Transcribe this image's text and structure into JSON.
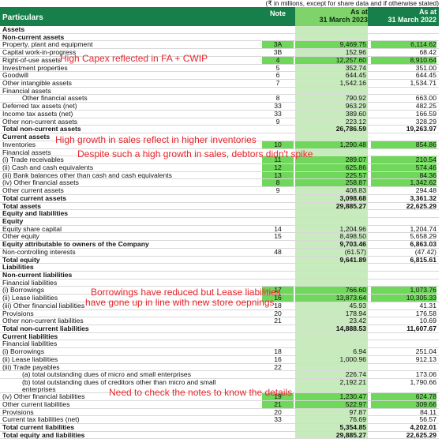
{
  "units_note": "(₹ in millions, except for share data and if otherwise stated)",
  "header": {
    "particulars": "Particulars",
    "note": "Note",
    "col1": [
      "As at",
      "31 March 2023"
    ],
    "col2": [
      "As at",
      "31 March 2022"
    ]
  },
  "rows": [
    {
      "p": "Assets",
      "n": "",
      "v1": "",
      "v2": "",
      "cls": "b"
    },
    {
      "p": "Non-current assets",
      "n": "",
      "v1": "",
      "v2": "",
      "cls": "b"
    },
    {
      "p": "Property, plant and equipment",
      "n": "3A",
      "v1": "9,469.75",
      "v2": "6,114.62",
      "cls": "hl"
    },
    {
      "p": "Capital work-in-progress",
      "n": "3B",
      "v1": "152.96",
      "v2": "68.42",
      "cls": ""
    },
    {
      "p": "Right-of-use assets",
      "n": "4",
      "v1": "12,257.60",
      "v2": "8,910.64",
      "cls": "hl"
    },
    {
      "p": "Investment properties",
      "n": "5",
      "v1": "352.74",
      "v2": "351.00",
      "cls": ""
    },
    {
      "p": "Goodwill",
      "n": "6",
      "v1": "644.45",
      "v2": "644.45",
      "cls": ""
    },
    {
      "p": "Other intangible assets",
      "n": "7",
      "v1": "1,542.16",
      "v2": "1,534.71",
      "cls": ""
    },
    {
      "p": "Financial assets",
      "n": "",
      "v1": "",
      "v2": "",
      "cls": ""
    },
    {
      "p": "Other financial assets",
      "n": "8",
      "v1": "790.92",
      "v2": "663.00",
      "cls": "ind2"
    },
    {
      "p": "Deferred tax assets (net)",
      "n": "33",
      "v1": "963.29",
      "v2": "482.25",
      "cls": ""
    },
    {
      "p": "Income tax assets (net)",
      "n": "33",
      "v1": "389.60",
      "v2": "166.59",
      "cls": ""
    },
    {
      "p": "Other non-current assets",
      "n": "9",
      "v1": "223.12",
      "v2": "328.29",
      "cls": ""
    },
    {
      "p": "Total non-current assets",
      "n": "",
      "v1": "26,786.59",
      "v2": "19,263.97",
      "cls": "b"
    },
    {
      "p": "Current assets",
      "n": "",
      "v1": "",
      "v2": "",
      "cls": "b"
    },
    {
      "p": "Inventories",
      "n": "10",
      "v1": "1,290.48",
      "v2": "854.86",
      "cls": "hl"
    },
    {
      "p": "Financial assets",
      "n": "",
      "v1": "",
      "v2": "",
      "cls": ""
    },
    {
      "p": "(i)   Trade receivables",
      "n": "11",
      "v1": "289.07",
      "v2": "210.54",
      "cls": "hl"
    },
    {
      "p": "(ii)  Cash and cash equivalents",
      "n": "12",
      "v1": "625.86",
      "v2": "574.46",
      "cls": "hl"
    },
    {
      "p": "(iii) Bank balances other than cash and cash equivalents",
      "n": "13",
      "v1": "225.57",
      "v2": "84.36",
      "cls": "hl"
    },
    {
      "p": "(iv)  Other financial assets",
      "n": "8",
      "v1": "258.87",
      "v2": "1,342.62",
      "cls": "hl"
    },
    {
      "p": "Other current assets",
      "n": "9",
      "v1": "408.83",
      "v2": "294.48",
      "cls": ""
    },
    {
      "p": "Total current assets",
      "n": "",
      "v1": "3,098.68",
      "v2": "3,361.32",
      "cls": "b"
    },
    {
      "p": "Total assets",
      "n": "",
      "v1": "29,885.27",
      "v2": "22,625.29",
      "cls": "b"
    },
    {
      "p": "Equity and liabilities",
      "n": "",
      "v1": "",
      "v2": "",
      "cls": "b"
    },
    {
      "p": "Equity",
      "n": "",
      "v1": "",
      "v2": "",
      "cls": "b"
    },
    {
      "p": "Equity share capital",
      "n": "14",
      "v1": "1,204.96",
      "v2": "1,204.74",
      "cls": ""
    },
    {
      "p": "Other equity",
      "n": "15",
      "v1": "8,498.50",
      "v2": "5,658.29",
      "cls": ""
    },
    {
      "p": "Equity attributable to owners of the Company",
      "n": "",
      "v1": "9,703.46",
      "v2": "6,863.03",
      "cls": "b"
    },
    {
      "p": "Non-controlling interests",
      "n": "48",
      "v1": "(61.57)",
      "v2": "(47.42)",
      "cls": ""
    },
    {
      "p": "Total equity",
      "n": "",
      "v1": "9,641.89",
      "v2": "6,815.61",
      "cls": "b"
    },
    {
      "p": "Liabilities",
      "n": "",
      "v1": "",
      "v2": "",
      "cls": "b"
    },
    {
      "p": "Non-current liabilities",
      "n": "",
      "v1": "",
      "v2": "",
      "cls": "b"
    },
    {
      "p": "Financial liabilities",
      "n": "",
      "v1": "",
      "v2": "",
      "cls": ""
    },
    {
      "p": "(i)   Borrowings",
      "n": "17",
      "v1": "766.60",
      "v2": "1,073.76",
      "cls": "hl"
    },
    {
      "p": "(ii)  Lease liabilities",
      "n": "16",
      "v1": "13,873.64",
      "v2": "10,305.33",
      "cls": "hl"
    },
    {
      "p": "(iii) Other financial liabilities",
      "n": "18",
      "v1": "45.93",
      "v2": "41.31",
      "cls": ""
    },
    {
      "p": "Provisions",
      "n": "20",
      "v1": "178.94",
      "v2": "176.58",
      "cls": ""
    },
    {
      "p": "Other non-current liabilities",
      "n": "21",
      "v1": "23.42",
      "v2": "10.69",
      "cls": ""
    },
    {
      "p": "Total non-current liabilities",
      "n": "",
      "v1": "14,888.53",
      "v2": "11,607.67",
      "cls": "b"
    },
    {
      "p": "Current liabilities",
      "n": "",
      "v1": "",
      "v2": "",
      "cls": "b"
    },
    {
      "p": "Financial liabilities",
      "n": "",
      "v1": "",
      "v2": "",
      "cls": ""
    },
    {
      "p": "(i)   Borrowings",
      "n": "18",
      "v1": "6.94",
      "v2": "251.04",
      "cls": ""
    },
    {
      "p": "(ii)  Lease liabilities",
      "n": "16",
      "v1": "1,000.96",
      "v2": "912.13",
      "cls": ""
    },
    {
      "p": "(iii) Trade payables",
      "n": "22",
      "v1": "",
      "v2": "",
      "cls": ""
    },
    {
      "p": "(a)   total outstanding dues of micro and small enterprises",
      "n": "",
      "v1": "226.74",
      "v2": "173.06",
      "cls": "ind2"
    },
    {
      "p": "(b)   total outstanding dues of creditors other than micro and small enterprises",
      "n": "",
      "v1": "2,192.21",
      "v2": "1,790.66",
      "cls": "ind2 tall"
    },
    {
      "p": "(iv)  Other financial liabilities",
      "n": "19",
      "v1": "1,230.47",
      "v2": "624.78",
      "cls": "hl"
    },
    {
      "p": "Other current liabilities",
      "n": "21",
      "v1": "522.97",
      "v2": "309.66",
      "cls": "hl"
    },
    {
      "p": "Provisions",
      "n": "20",
      "v1": "97.87",
      "v2": "84.11",
      "cls": ""
    },
    {
      "p": "Current tax liabilities (net)",
      "n": "33",
      "v1": "76.69",
      "v2": "56.57",
      "cls": ""
    },
    {
      "p": "Total current liabilities",
      "n": "",
      "v1": "5,354.85",
      "v2": "4,202.01",
      "cls": "b"
    },
    {
      "p": "Total equity and liabilities",
      "n": "",
      "v1": "29,885.27",
      "v2": "22,625.29",
      "cls": "b"
    }
  ],
  "annotations": [
    "High Capex reflected in FA + CWIP",
    "High growth in sales reflect in higher inventories",
    "Despite such a high growth in sales, debtors didn't spike",
    "Borrowings have reduced but Lease liabilities",
    "have gone up in line with new store oepnings.",
    "Need to check the notes to know the details"
  ]
}
